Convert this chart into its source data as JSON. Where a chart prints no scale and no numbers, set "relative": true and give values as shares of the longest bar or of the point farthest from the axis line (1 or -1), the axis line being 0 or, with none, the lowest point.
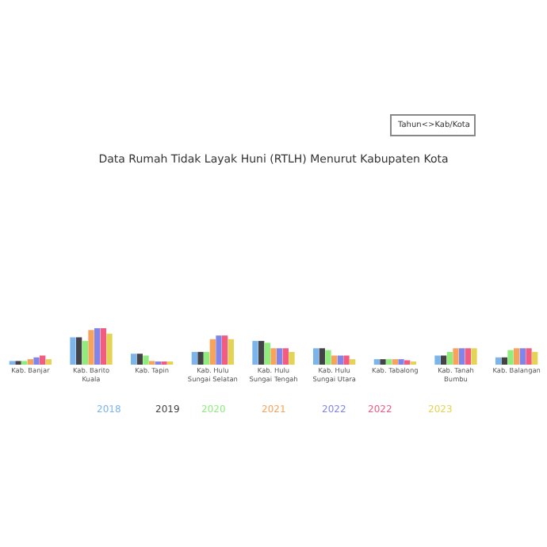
{
  "chart_data": {
    "type": "bar",
    "relative": true,
    "title": "Data Rumah Tidak Layak Huni (RTLH) Menurut Kabupaten Kota",
    "annotations": [
      "Tahun<>Kab/Kota"
    ],
    "categories": [
      "Kab. Banjar",
      "Kab. Barito Kuala",
      "Kab. Tapin",
      "Kab. Hulu Sungai Selatan",
      "Kab. Hulu Sungai Tengah",
      "Kab. Hulu Sungai Utara",
      "Kab. Tabalong",
      "Kab. Tanah Bumbu",
      "Kab. Balangan"
    ],
    "series": [
      {
        "name": "2018",
        "color": "#7cb5ec",
        "values": [
          0.1,
          0.75,
          0.3,
          0.35,
          0.65,
          0.45,
          0.15,
          0.25,
          0.2
        ]
      },
      {
        "name": "2019",
        "color": "#434348",
        "values": [
          0.1,
          0.75,
          0.3,
          0.35,
          0.65,
          0.45,
          0.15,
          0.25,
          0.2
        ]
      },
      {
        "name": "2020",
        "color": "#90ed7d",
        "values": [
          0.1,
          0.65,
          0.25,
          0.35,
          0.6,
          0.4,
          0.15,
          0.35,
          0.4
        ]
      },
      {
        "name": "2021",
        "color": "#f7a35c",
        "values": [
          0.15,
          0.95,
          0.1,
          0.7,
          0.45,
          0.25,
          0.15,
          0.45,
          0.45
        ]
      },
      {
        "name": "2022",
        "color": "#8085e9",
        "values": [
          0.2,
          1,
          0.05,
          0.8,
          0.45,
          0.25,
          0.15,
          0.45,
          0.45
        ]
      },
      {
        "name": "2022",
        "color": "#f15c80",
        "values": [
          0.25,
          1,
          0.05,
          0.8,
          0.45,
          0.25,
          0.12,
          0.45,
          0.45
        ]
      },
      {
        "name": "2023",
        "color": "#e4d354",
        "values": [
          0.15,
          0.85,
          0.05,
          0.7,
          0.35,
          0.15,
          0.08,
          0.45,
          0.35
        ]
      }
    ],
    "legend": "bottom"
  }
}
